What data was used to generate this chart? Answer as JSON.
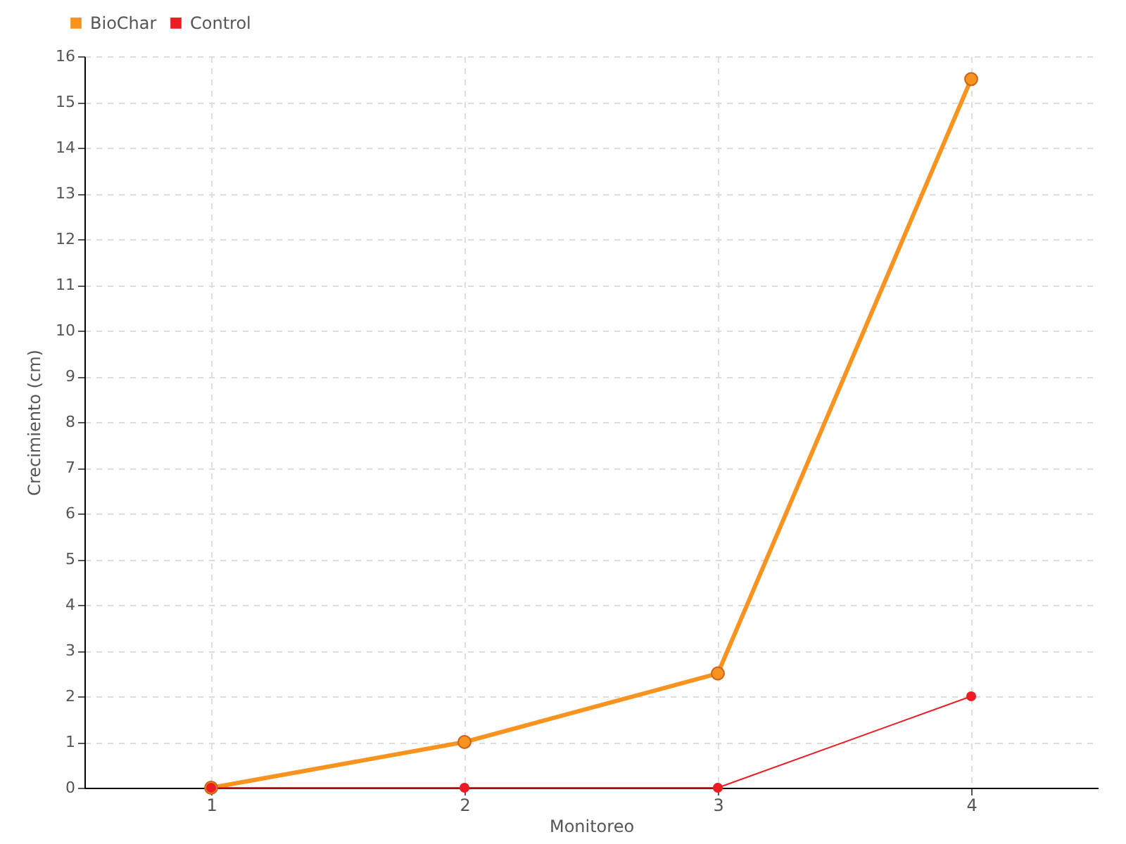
{
  "chart_data": {
    "type": "line",
    "xlabel": "Monitoreo",
    "ylabel": "Crecimiento (cm)",
    "x": [
      1,
      2,
      3,
      4
    ],
    "xlim": [
      0.5,
      4.5
    ],
    "xticks": [
      1,
      2,
      3,
      4
    ],
    "ylim": [
      0,
      16
    ],
    "yticks": [
      0,
      1,
      2,
      3,
      4,
      5,
      6,
      7,
      8,
      9,
      10,
      11,
      12,
      13,
      14,
      15,
      16
    ],
    "series": [
      {
        "name": "BioChar",
        "color": "#f7931e",
        "values": [
          0,
          1,
          2.5,
          15.5
        ]
      },
      {
        "name": "Control",
        "color": "#ec1c24",
        "values": [
          0,
          0,
          0,
          2
        ]
      }
    ],
    "grid": true,
    "legend": "top left",
    "marker": "circle",
    "line_style": "solid"
  }
}
